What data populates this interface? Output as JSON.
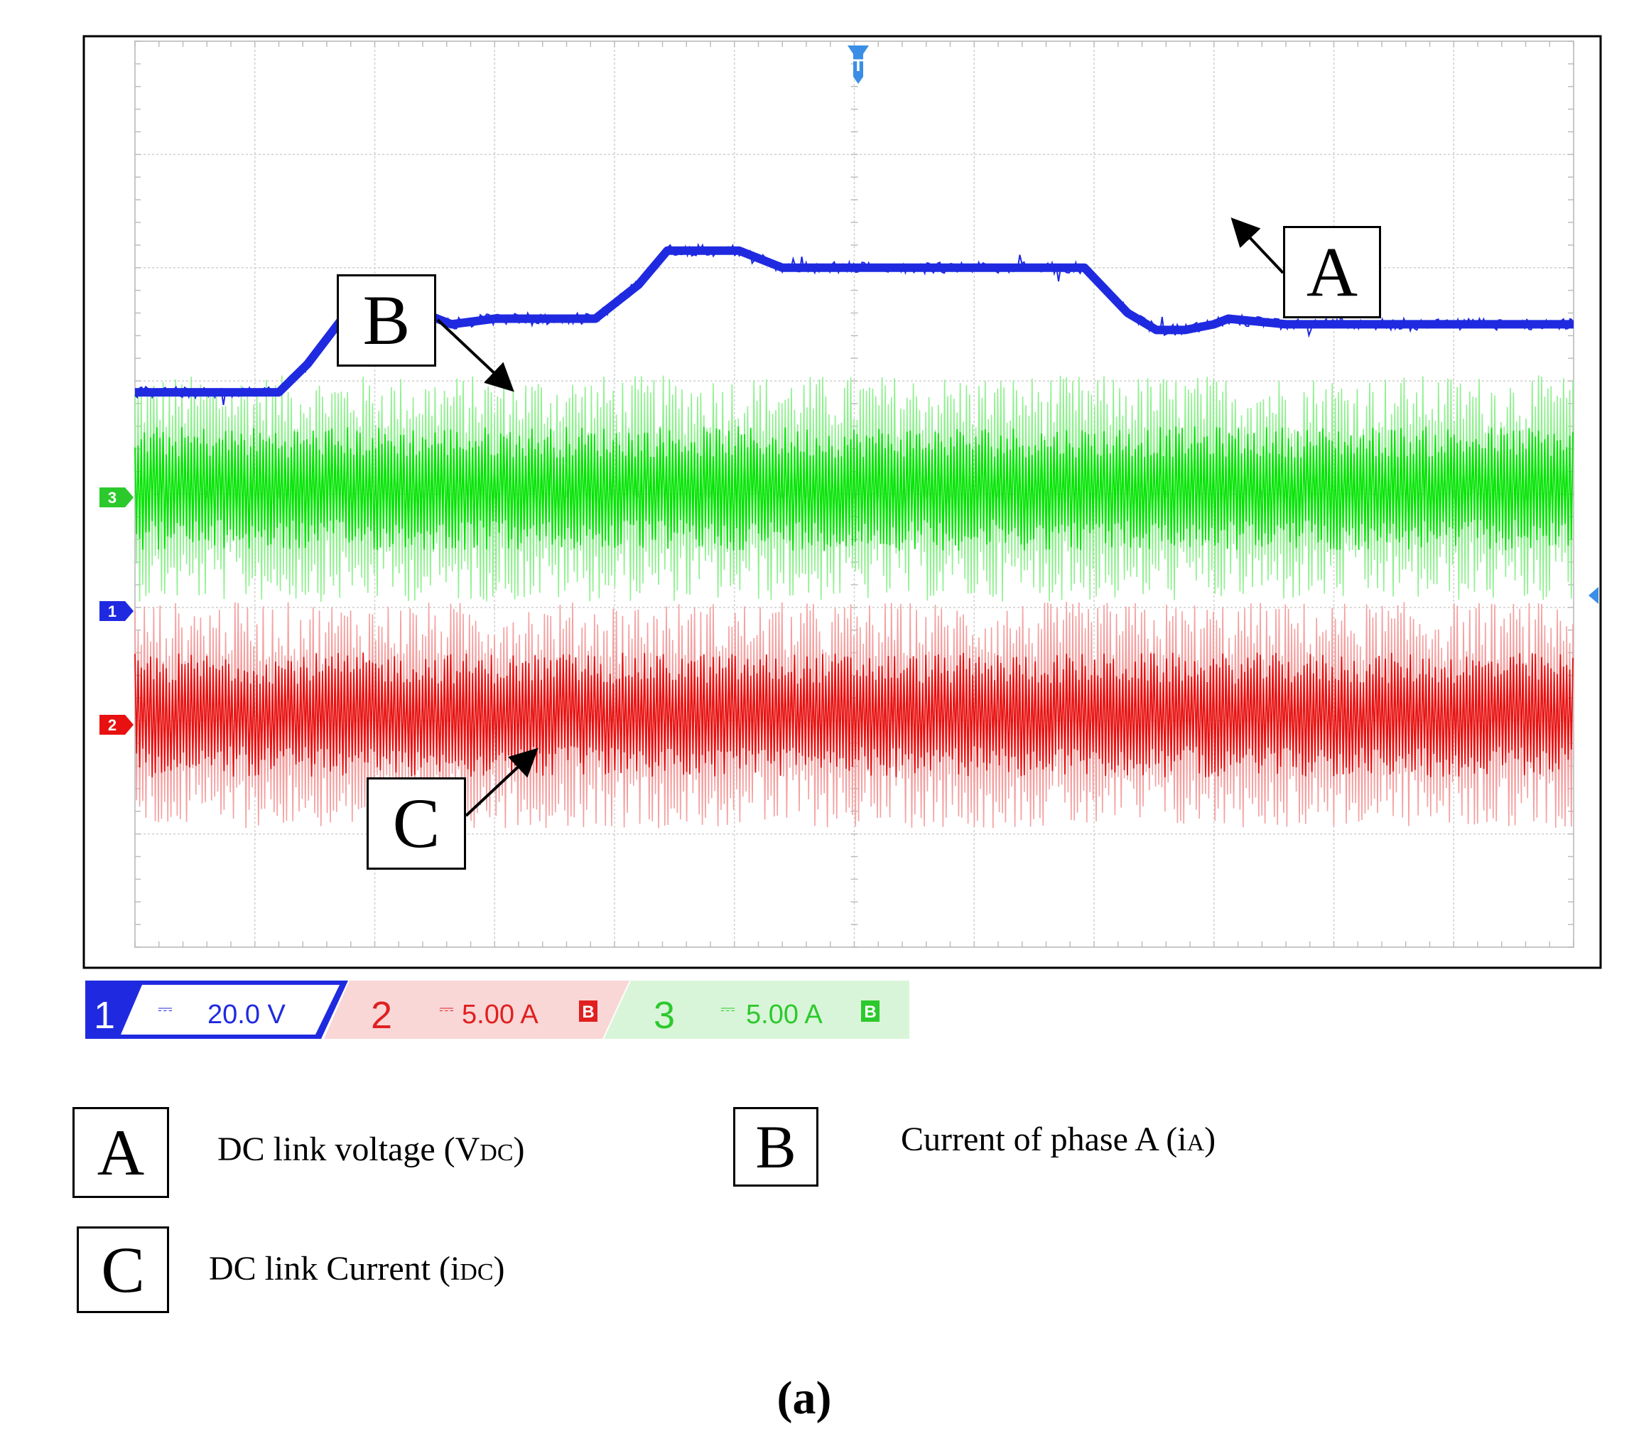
{
  "chart_data": {
    "type": "line",
    "title": "",
    "grid": true,
    "divisions": {
      "x": 12,
      "y": 8
    },
    "series": [
      {
        "name": "DC link voltage (VDC)",
        "channel": "1",
        "color": "#1f2ae0",
        "scale": "20.0 V",
        "kind": "step",
        "x": [
          0.0,
          0.1,
          0.12,
          0.15,
          0.17,
          0.2,
          0.22,
          0.25,
          0.32,
          0.35,
          0.37,
          0.42,
          0.45,
          0.5,
          0.66,
          0.69,
          0.71,
          0.73,
          0.75,
          0.76,
          0.8,
          1.0
        ],
        "y": [
          4.9,
          4.9,
          5.15,
          5.65,
          5.8,
          5.6,
          5.5,
          5.55,
          5.55,
          5.85,
          6.15,
          6.15,
          6.0,
          6.0,
          6.0,
          5.6,
          5.45,
          5.45,
          5.5,
          5.55,
          5.5,
          5.5
        ]
      },
      {
        "name": "Current of phase A (iA)",
        "channel": "3",
        "color": "#00e400",
        "scale": "5.00 A",
        "kind": "noise",
        "center_div": 4.05,
        "core_half_div": 0.55,
        "peak_half_div": 1.0
      },
      {
        "name": "DC link Current (iDC)",
        "channel": "2",
        "color": "#e81010",
        "scale": "5.00 A",
        "kind": "noise",
        "center_div": 2.05,
        "core_half_div": 0.55,
        "peak_half_div": 1.0
      }
    ],
    "annotations": [
      "A",
      "B",
      "C"
    ]
  },
  "scope": {
    "trigger_marker": "T",
    "channel_markers": {
      "ch3": "3",
      "ch1": "1",
      "ch2": "2"
    },
    "status_bar": {
      "ch1": {
        "num": "1",
        "coupling": "⎓",
        "scale": "20.0 V"
      },
      "ch2": {
        "num": "2",
        "coupling": "⎓",
        "scale": "5.00 A",
        "bw": "B"
      },
      "ch3": {
        "num": "3",
        "coupling": "⎓",
        "scale": "5.00 A",
        "bw": "B"
      }
    }
  },
  "annotations": {
    "a": "A",
    "b": "B",
    "c": "C"
  },
  "legend": [
    {
      "letter": "A",
      "text": "DC link voltage (V",
      "sub": "DC",
      "close": ")"
    },
    {
      "letter": "B",
      "text": "Current of phase A  (i",
      "sub": "A",
      "close": ")"
    },
    {
      "letter": "C",
      "text": "DC link Current (i",
      "sub": "DC",
      "close": ")"
    }
  ],
  "caption": "(a)"
}
